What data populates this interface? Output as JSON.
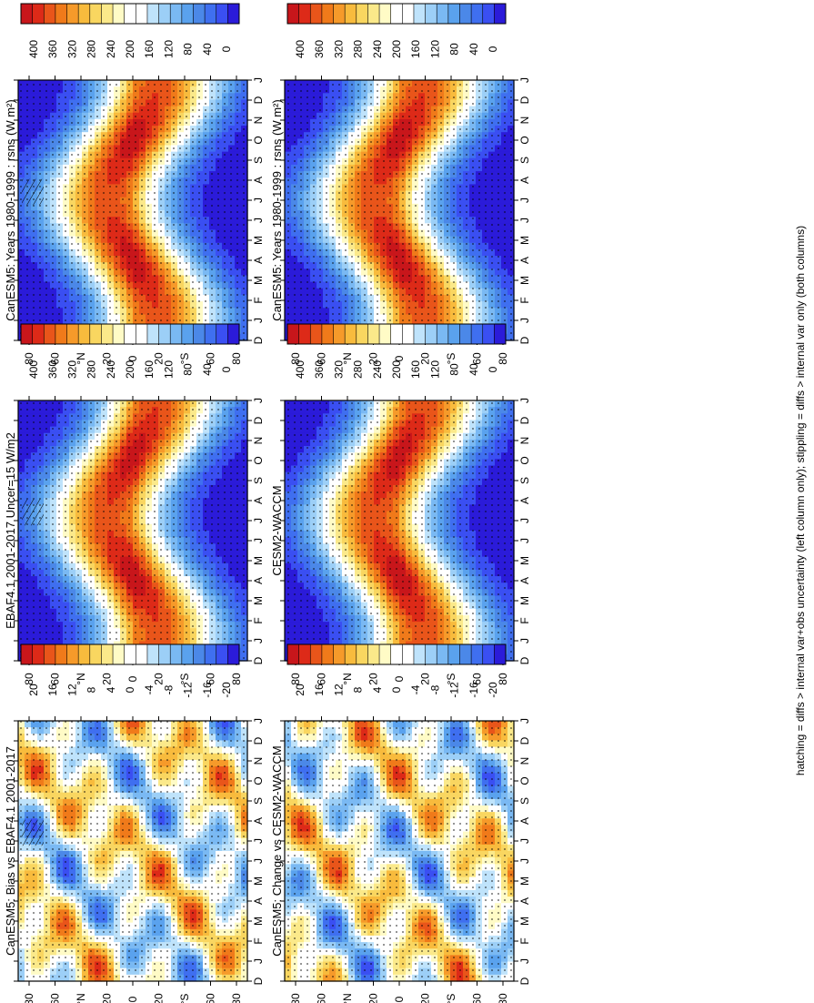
{
  "footnote": "hatching = diffs > internal var+obs uncertainty (left column only); stippling = diffs > internal var only (both columns)",
  "month_labels": [
    "D",
    "J",
    "F",
    "M",
    "A",
    "M",
    "J",
    "J",
    "A",
    "S",
    "O",
    "N",
    "D",
    "J"
  ],
  "lat_labels": [
    "80",
    "60",
    "°N",
    "20",
    "0",
    "20",
    "°S",
    "60",
    "80"
  ],
  "abs_palette": [
    "#2b1bd9",
    "#3a4ff2",
    "#3f6ff0",
    "#4b88e8",
    "#5aa2ee",
    "#7ab9f3",
    "#9ccff7",
    "#bfe3fb",
    "#ffffff",
    "#ffffff",
    "#fffbc6",
    "#fbe98a",
    "#f9d660",
    "#f8bb3d",
    "#f69a2a",
    "#f07a1a",
    "#e9551a",
    "#dd2a18",
    "#c8161b"
  ],
  "abs_ticks": [
    "0",
    "40",
    "80",
    "120",
    "160",
    "200",
    "240",
    "280",
    "320",
    "360",
    "400"
  ],
  "diff_palette": [
    "#2b1bd9",
    "#3a4ff2",
    "#3f6ff0",
    "#4b88e8",
    "#5aa2ee",
    "#7ab9f3",
    "#9ccff7",
    "#bfe3fb",
    "#ffffff",
    "#ffffff",
    "#fffbc6",
    "#fbe98a",
    "#f9d660",
    "#f8bb3d",
    "#f69a2a",
    "#f07a1a",
    "#e9551a",
    "#dd2a18",
    "#c8161b"
  ],
  "diff_ticks": [
    "-20",
    "-16",
    "-12",
    "-8",
    "-4",
    "0",
    "4",
    "8",
    "12",
    "16",
    "20"
  ],
  "colors": {
    "axis": "#000000",
    "background": "#ffffff",
    "stipple": "#000000"
  },
  "chart_data": [
    {
      "type": "heatmap",
      "title": "CanESM5: Years 1980-1999 : rsns (W m²)",
      "variable": "rsns",
      "units": "W m-2",
      "field": "model_climatology",
      "x": [
        "D",
        "J",
        "F",
        "M",
        "A",
        "M",
        "J",
        "J",
        "A",
        "S",
        "O",
        "N",
        "D",
        "J"
      ],
      "y": [
        "80",
        "60",
        "°N",
        "20",
        "0",
        "20",
        "°S",
        "60",
        "80"
      ],
      "colorbar": {
        "ticks": [
          "0",
          "40",
          "80",
          "120",
          "160",
          "200",
          "240",
          "280",
          "320",
          "360",
          "400"
        ],
        "range": [
          0,
          400
        ]
      },
      "stippling": true,
      "hatching": true
    },
    {
      "type": "heatmap",
      "title": "EBAF4.1 2001-2017 Uncer=15 W/m2",
      "variable": "rsns",
      "units": "W m-2",
      "field": "observations",
      "x": [
        "D",
        "J",
        "F",
        "M",
        "A",
        "M",
        "J",
        "J",
        "A",
        "S",
        "O",
        "N",
        "D",
        "J"
      ],
      "y": [
        "80",
        "60",
        "°N",
        "20",
        "0",
        "20",
        "°S",
        "60",
        "80"
      ],
      "colorbar": {
        "ticks": [
          "0",
          "40",
          "80",
          "120",
          "160",
          "200",
          "240",
          "280",
          "320",
          "360",
          "400"
        ],
        "range": [
          0,
          400
        ]
      },
      "stippling": true,
      "hatching": true
    },
    {
      "type": "heatmap",
      "title": "CanESM5: Bias vs EBAF4.1 2001-2017",
      "variable": "rsns",
      "units": "W m-2",
      "field": "bias",
      "x": [
        "D",
        "J",
        "F",
        "M",
        "A",
        "M",
        "J",
        "J",
        "A",
        "S",
        "O",
        "N",
        "D",
        "J"
      ],
      "y": [
        "80",
        "60",
        "°N",
        "20",
        "0",
        "20",
        "°S",
        "60",
        "80"
      ],
      "colorbar": {
        "ticks": [
          "-20",
          "-16",
          "-12",
          "-8",
          "-4",
          "0",
          "4",
          "8",
          "12",
          "16",
          "20"
        ],
        "range": [
          -20,
          20
        ]
      },
      "stippling": true,
      "hatching": true
    },
    {
      "type": "heatmap",
      "title": "CanESM5: Years 1980-1999 : rsns (W m²)",
      "variable": "rsns",
      "units": "W m-2",
      "field": "model_climatology",
      "x": [
        "D",
        "J",
        "F",
        "M",
        "A",
        "M",
        "J",
        "J",
        "A",
        "S",
        "O",
        "N",
        "D",
        "J"
      ],
      "y": [
        "80",
        "60",
        "°N",
        "20",
        "0",
        "20",
        "°S",
        "60",
        "80"
      ],
      "colorbar": {
        "ticks": [
          "0",
          "40",
          "80",
          "120",
          "160",
          "200",
          "240",
          "280",
          "320",
          "360",
          "400"
        ],
        "range": [
          0,
          400
        ]
      },
      "stippling": true,
      "hatching": false
    },
    {
      "type": "heatmap",
      "title": "CESM2-WACCM",
      "variable": "rsns",
      "units": "W m-2",
      "field": "comparison_model",
      "x": [
        "D",
        "J",
        "F",
        "M",
        "A",
        "M",
        "J",
        "J",
        "A",
        "S",
        "O",
        "N",
        "D",
        "J"
      ],
      "y": [
        "80",
        "60",
        "°N",
        "20",
        "0",
        "20",
        "°S",
        "60",
        "80"
      ],
      "colorbar": {
        "ticks": [
          "0",
          "40",
          "80",
          "120",
          "160",
          "200",
          "240",
          "280",
          "320",
          "360",
          "400"
        ],
        "range": [
          0,
          400
        ]
      },
      "stippling": true,
      "hatching": false
    },
    {
      "type": "heatmap",
      "title": "CanESM5: Change vs CESM2-WACCM",
      "variable": "rsns",
      "units": "W m-2",
      "field": "change",
      "x": [
        "D",
        "J",
        "F",
        "M",
        "A",
        "M",
        "J",
        "J",
        "A",
        "S",
        "O",
        "N",
        "D",
        "J"
      ],
      "y": [
        "80",
        "60",
        "°N",
        "20",
        "0",
        "20",
        "°S",
        "60",
        "80"
      ],
      "colorbar": {
        "ticks": [
          "-20",
          "-16",
          "-12",
          "-8",
          "-4",
          "0",
          "4",
          "8",
          "12",
          "16",
          "20"
        ],
        "range": [
          -20,
          20
        ]
      },
      "stippling": true,
      "hatching": false
    }
  ]
}
